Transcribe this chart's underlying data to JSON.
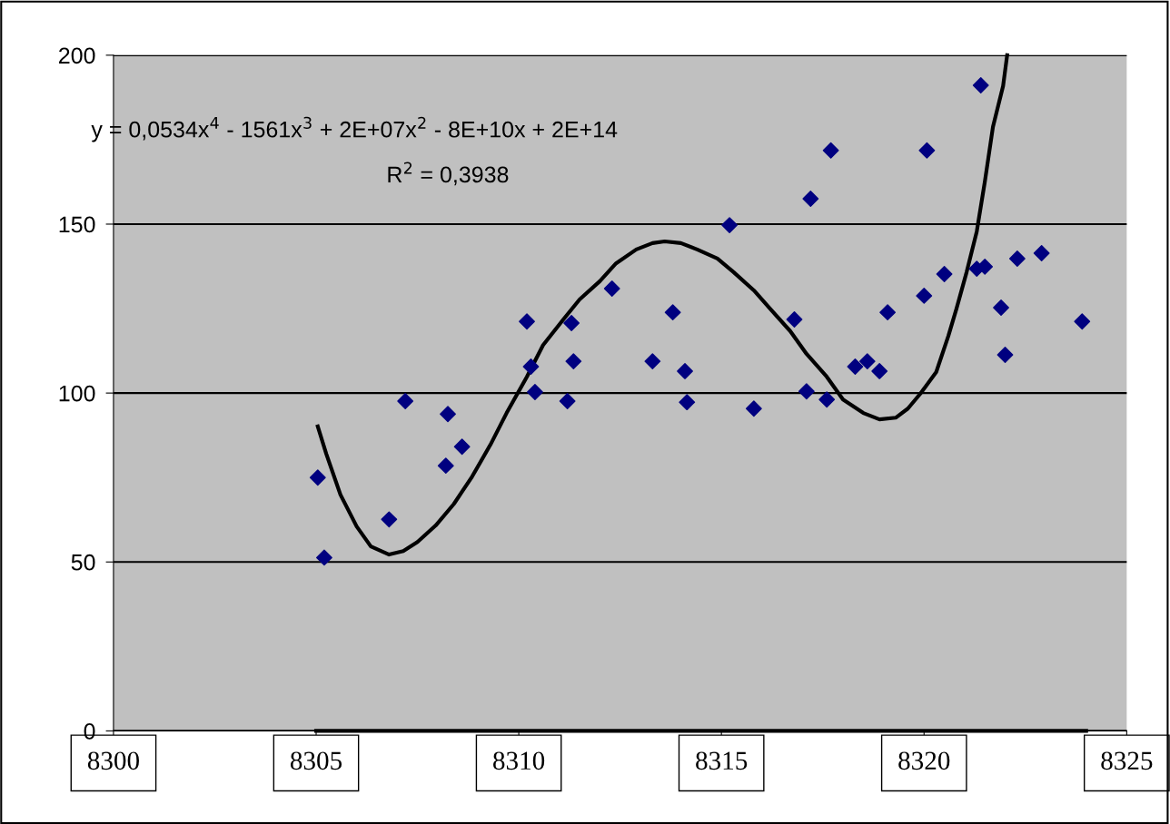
{
  "chart_data": {
    "type": "scatter",
    "annotations": [
      "y = 0,0534x$^{4}$ - 1561x$^{3}$ + 2E+07x$^{2}$ - 8E+10x + 2E+14",
      "R$^{2}$ = 0,3938"
    ],
    "xlim": [
      8300,
      8325
    ],
    "xticks": [
      8300,
      8305,
      8310,
      8315,
      8320,
      8325
    ],
    "ylim": [
      0,
      200
    ],
    "yticks": [
      0,
      50,
      100,
      150,
      200
    ],
    "grid": "y",
    "legend": false,
    "series": [
      {
        "marker": "diamond",
        "color": "#000080",
        "x": [
          8305.04,
          8305.2,
          8306.8,
          8307.2,
          8308.2,
          8308.25,
          8308.6,
          8310.2,
          8310.3,
          8310.4,
          8311.2,
          8311.3,
          8311.35,
          8312.3,
          8313.3,
          8313.8,
          8314.1,
          8314.15,
          8315.2,
          8315.8,
          8316.8,
          8317.1,
          8317.2,
          8317.6,
          8317.7,
          8318.3,
          8318.6,
          8318.9,
          8319.1,
          8320.0,
          8320.07,
          8320.5,
          8321.3,
          8321.5,
          8321.4,
          8321.9,
          8322.0,
          8322.3,
          8322.9,
          8323.9
        ],
        "values": [
          75,
          51.3,
          62.6,
          97.6,
          78.5,
          93.8,
          84.1,
          121.2,
          107.8,
          100.3,
          97.6,
          120.7,
          109.4,
          130.9,
          109.4,
          123.9,
          106.5,
          97.3,
          149.7,
          95.4,
          121.8,
          100.5,
          157.5,
          98.1,
          171.8,
          107.8,
          109.4,
          106.5,
          123.9,
          128.8,
          171.8,
          135.2,
          136.8,
          137.4,
          191.1,
          125.3,
          111.3,
          139.8,
          141.4,
          121.2
        ]
      },
      {
        "type": "line",
        "marker": "none",
        "line_style": "solid",
        "color": "#000000",
        "x": [
          8305.04,
          8305.25,
          8305.6,
          8306.0,
          8306.35,
          8306.8,
          8307.15,
          8307.5,
          8307.95,
          8308.4,
          8308.85,
          8309.3,
          8309.7,
          8310.2,
          8310.6,
          8311.1,
          8311.5,
          8312.0,
          8312.4,
          8312.9,
          8313.3,
          8313.6,
          8314.0,
          8314.4,
          8314.9,
          8315.3,
          8315.8,
          8316.2,
          8316.7,
          8317.1,
          8317.6,
          8318.0,
          8318.5,
          8318.9,
          8319.3,
          8319.6,
          8319.9,
          8320.3,
          8320.6,
          8320.8,
          8321.05,
          8321.3,
          8321.5,
          8321.7,
          8321.95,
          8322.05
        ],
        "values": [
          90.1,
          82,
          69.9,
          60.5,
          54.6,
          52.2,
          53.2,
          55.9,
          60.8,
          67.2,
          75.3,
          84.7,
          94.1,
          104.8,
          114.2,
          121.8,
          127.7,
          133.1,
          138.4,
          142.5,
          144.4,
          144.9,
          144.4,
          142.5,
          139.8,
          135.8,
          130.4,
          125,
          118.3,
          111.6,
          104.8,
          98.1,
          94.1,
          92.2,
          92.7,
          95.4,
          99.7,
          106.2,
          116.9,
          125,
          135.8,
          147.8,
          162.6,
          178.8,
          190.9,
          200
        ]
      },
      {
        "type": "line",
        "marker": "none",
        "line_style": "solid",
        "color": "#000000",
        "x": [
          8305.0,
          8324.0
        ],
        "values": [
          0,
          0
        ]
      }
    ]
  }
}
